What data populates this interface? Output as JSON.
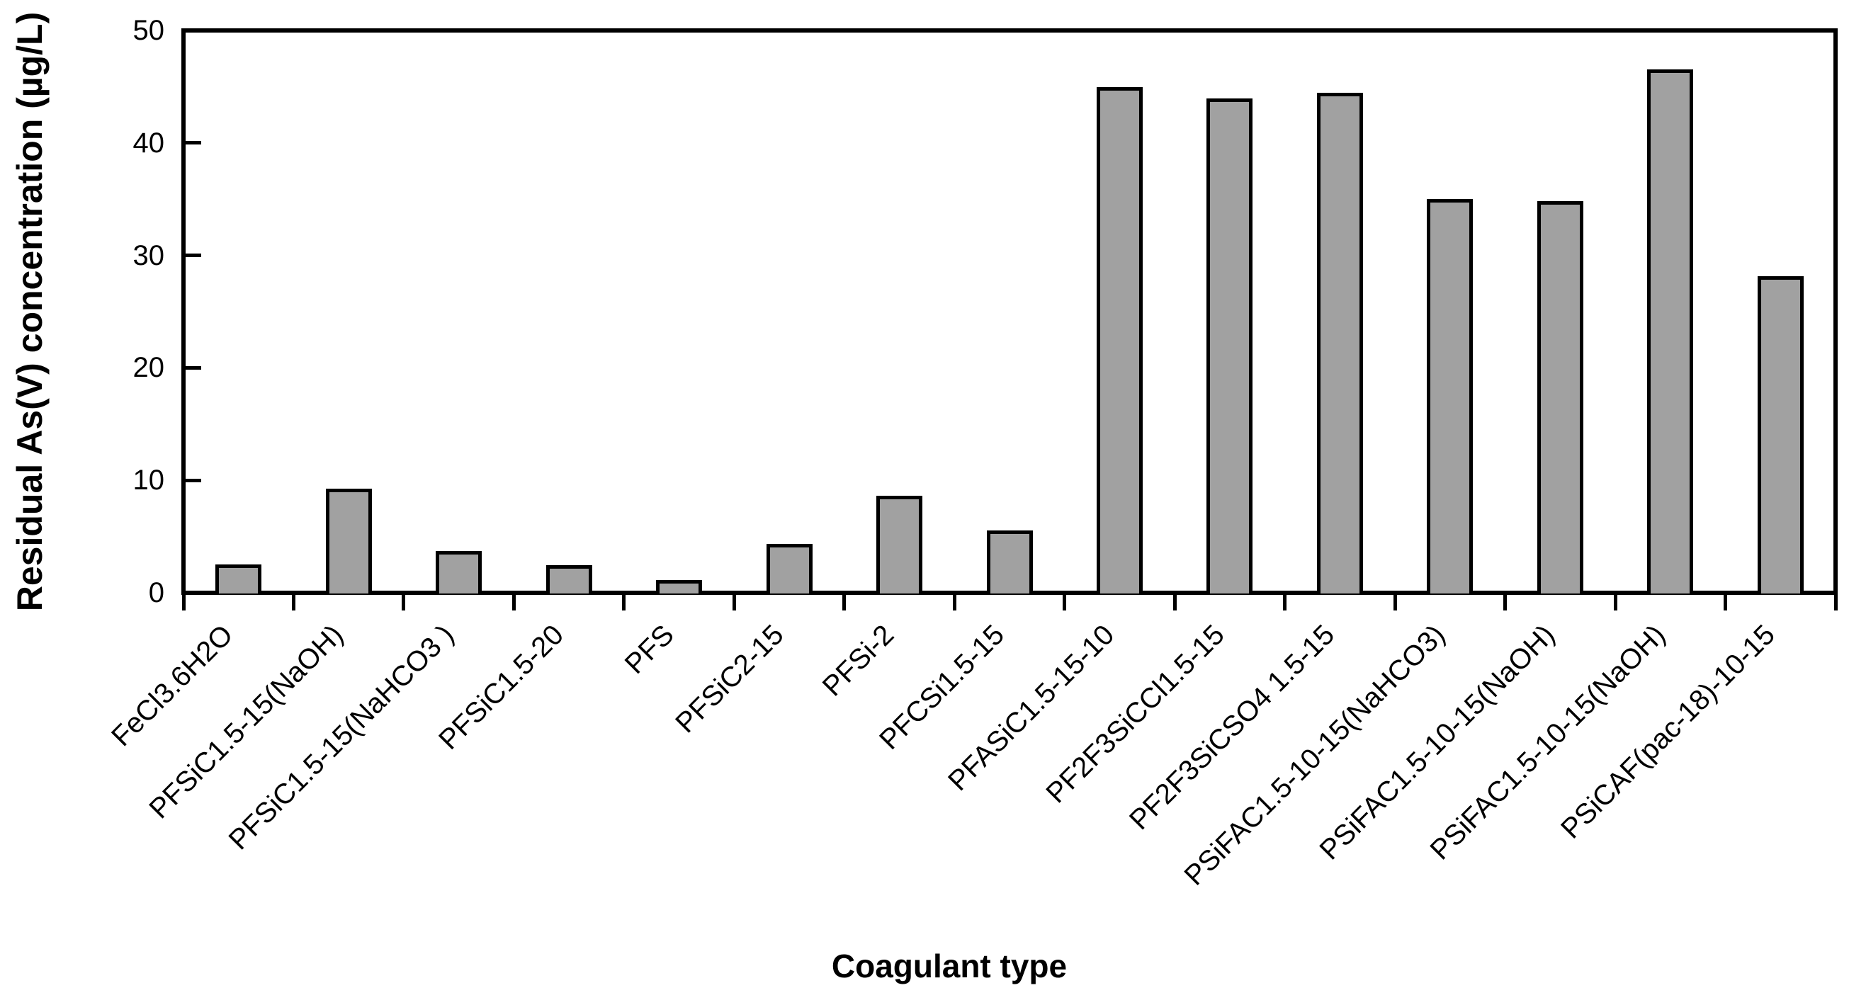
{
  "chart_data": {
    "type": "bar",
    "title": "",
    "xlabel": "Coagulant type",
    "ylabel": "Residual As(V) concentration (µg/L)",
    "categories": [
      "FeCl3.6H2O",
      "PFSiC1.5-15(NaOH)",
      "PFSiC1.5-15(NaHCO3 )",
      "PFSiC1.5-20",
      "PFS",
      "PFSiC2-15",
      "PFSi-2",
      "PFCSi1.5-15",
      "PFASiC1.5-15-10",
      "PF2F3SiCCl1.5-15",
      "PF2F3SiCSO4 1.5-15",
      "PSiFAC1.5-10-15(NaHCO3)",
      "PSiFAC1.5-10-15(NaOH)",
      "PSiFAC1.5-10-15(NaOH)",
      "PSiCAF(pac-18)-10-15"
    ],
    "values": [
      2.6,
      9.3,
      3.8,
      2.5,
      1.2,
      4.4,
      8.7,
      5.6,
      45,
      44,
      44.5,
      35.1,
      34.9,
      46.6,
      28.2
    ],
    "series": [
      {
        "name": "Residual As(V) concentration",
        "values": [
          2.6,
          9.3,
          3.8,
          2.5,
          1.2,
          4.4,
          8.7,
          5.6,
          45,
          44,
          44.5,
          35.1,
          34.9,
          46.6,
          28.2
        ]
      }
    ],
    "ylim": [
      0,
      50
    ],
    "yticks": [
      0,
      10,
      20,
      30,
      40,
      50
    ],
    "ytick_labels": [
      "0",
      "10",
      "20",
      "30",
      "40",
      "50"
    ],
    "grid": false,
    "legend": false,
    "bar_color": "#a1a1a1",
    "bar_border_color": "#000000",
    "axis_color": "#000000",
    "background_color": "#ffffff"
  }
}
